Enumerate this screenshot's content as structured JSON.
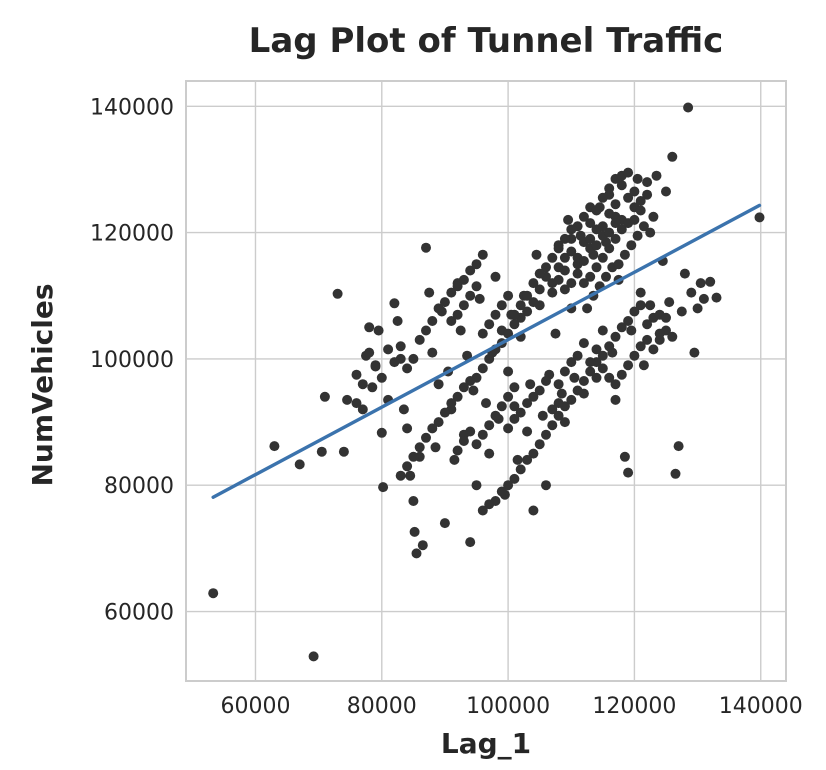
{
  "chart_data": {
    "type": "scatter",
    "title": "Lag Plot of Tunnel Traffic",
    "xlabel": "Lag_1",
    "ylabel": "NumVehicles",
    "xlim": [
      49000,
      144000
    ],
    "ylim": [
      49000,
      144000
    ],
    "xticks": [
      60000,
      80000,
      100000,
      120000,
      140000
    ],
    "yticks": [
      60000,
      80000,
      100000,
      120000,
      140000
    ],
    "grid": true,
    "point_color": "#333333",
    "line_color": "#3b73ad",
    "regression_line": {
      "x": [
        53300,
        139800
      ],
      "y": [
        78100,
        124300
      ]
    },
    "points": [
      [
        53300,
        62900
      ],
      [
        69200,
        52900
      ],
      [
        63000,
        86200
      ],
      [
        67000,
        83300
      ],
      [
        70500,
        85300
      ],
      [
        71000,
        94000
      ],
      [
        73000,
        110300
      ],
      [
        74000,
        85300
      ],
      [
        74500,
        93500
      ],
      [
        76000,
        97500
      ],
      [
        77000,
        92000
      ],
      [
        77500,
        100500
      ],
      [
        78000,
        105000
      ],
      [
        78500,
        95500
      ],
      [
        79000,
        98800
      ],
      [
        79500,
        104500
      ],
      [
        80000,
        88300
      ],
      [
        80200,
        79700
      ],
      [
        81000,
        93500
      ],
      [
        82000,
        108800
      ],
      [
        82500,
        106000
      ],
      [
        83000,
        100000
      ],
      [
        83500,
        92000
      ],
      [
        84000,
        89000
      ],
      [
        84500,
        81500
      ],
      [
        85000,
        77500
      ],
      [
        85200,
        72600
      ],
      [
        85500,
        69200
      ],
      [
        86000,
        84500
      ],
      [
        86500,
        70500
      ],
      [
        87000,
        117600
      ],
      [
        87500,
        110500
      ],
      [
        88000,
        101000
      ],
      [
        88500,
        86000
      ],
      [
        89000,
        96000
      ],
      [
        89500,
        107500
      ],
      [
        90000,
        74000
      ],
      [
        90500,
        98000
      ],
      [
        91000,
        92000
      ],
      [
        91500,
        84000
      ],
      [
        92000,
        112000
      ],
      [
        92500,
        104500
      ],
      [
        93000,
        88000
      ],
      [
        93500,
        100500
      ],
      [
        94000,
        71000
      ],
      [
        94500,
        95000
      ],
      [
        95000,
        80000
      ],
      [
        95500,
        109500
      ],
      [
        96000,
        116500
      ],
      [
        96500,
        93000
      ],
      [
        97000,
        85000
      ],
      [
        97500,
        101000
      ],
      [
        98000,
        113000
      ],
      [
        98500,
        90500
      ],
      [
        99000,
        104500
      ],
      [
        99500,
        78500
      ],
      [
        100000,
        98000
      ],
      [
        100500,
        107000
      ],
      [
        101000,
        92500
      ],
      [
        101500,
        84000
      ],
      [
        102000,
        103500
      ],
      [
        102500,
        110000
      ],
      [
        103000,
        88500
      ],
      [
        103500,
        96000
      ],
      [
        104000,
        76000
      ],
      [
        104500,
        116500
      ],
      [
        105000,
        108500
      ],
      [
        105500,
        91000
      ],
      [
        106000,
        80000
      ],
      [
        106500,
        97500
      ],
      [
        107000,
        112000
      ],
      [
        107500,
        104000
      ],
      [
        108000,
        118000
      ],
      [
        108500,
        94500
      ],
      [
        109000,
        111000
      ],
      [
        109500,
        122000
      ],
      [
        110000,
        108000
      ],
      [
        110500,
        97000
      ],
      [
        111000,
        115000
      ],
      [
        111500,
        119500
      ],
      [
        112000,
        94500
      ],
      [
        112500,
        108000
      ],
      [
        113000,
        121500
      ],
      [
        113500,
        116500
      ],
      [
        114000,
        97000
      ],
      [
        114500,
        124000
      ],
      [
        115000,
        104500
      ],
      [
        115500,
        118500
      ],
      [
        116000,
        126000
      ],
      [
        116500,
        101000
      ],
      [
        117000,
        122500
      ],
      [
        117500,
        112500
      ],
      [
        118000,
        127500
      ],
      [
        118500,
        84500
      ],
      [
        119000,
        82000
      ],
      [
        119500,
        104500
      ],
      [
        120000,
        124000
      ],
      [
        120500,
        128500
      ],
      [
        121000,
        110500
      ],
      [
        121500,
        99000
      ],
      [
        122000,
        126000
      ],
      [
        122500,
        108500
      ],
      [
        123000,
        122500
      ],
      [
        123500,
        129000
      ],
      [
        124000,
        103000
      ],
      [
        124500,
        115500
      ],
      [
        125000,
        126500
      ],
      [
        125500,
        109000
      ],
      [
        126000,
        132000
      ],
      [
        126500,
        81800
      ],
      [
        127000,
        86200
      ],
      [
        127500,
        107500
      ],
      [
        128000,
        113500
      ],
      [
        128500,
        139800
      ],
      [
        129000,
        110500
      ],
      [
        129500,
        101000
      ],
      [
        130000,
        108000
      ],
      [
        130500,
        112000
      ],
      [
        131000,
        109500
      ],
      [
        132000,
        112200
      ],
      [
        133000,
        109700
      ],
      [
        139800,
        122400
      ],
      [
        105000,
        111000
      ],
      [
        106000,
        113000
      ],
      [
        107000,
        110500
      ],
      [
        108000,
        114500
      ],
      [
        109000,
        116000
      ],
      [
        110000,
        117000
      ],
      [
        111000,
        113500
      ],
      [
        112000,
        118500
      ],
      [
        113000,
        119000
      ],
      [
        114000,
        120500
      ],
      [
        115000,
        121000
      ],
      [
        116000,
        123000
      ],
      [
        117000,
        124500
      ],
      [
        118000,
        122000
      ],
      [
        119000,
        125500
      ],
      [
        120000,
        126500
      ],
      [
        121000,
        125000
      ],
      [
        122000,
        128000
      ],
      [
        104000,
        109000
      ],
      [
        103000,
        107500
      ],
      [
        102000,
        106500
      ],
      [
        101000,
        105500
      ],
      [
        100000,
        104000
      ],
      [
        99000,
        102500
      ],
      [
        98000,
        101500
      ],
      [
        97000,
        100000
      ],
      [
        96000,
        98500
      ],
      [
        95000,
        97000
      ],
      [
        94000,
        96500
      ],
      [
        93000,
        95500
      ],
      [
        92000,
        94000
      ],
      [
        91000,
        93000
      ],
      [
        90000,
        91500
      ],
      [
        89000,
        90000
      ],
      [
        88000,
        89000
      ],
      [
        87000,
        87500
      ],
      [
        86000,
        86000
      ],
      [
        85000,
        84500
      ],
      [
        84000,
        83000
      ],
      [
        83000,
        81500
      ],
      [
        106000,
        88000
      ],
      [
        107000,
        89500
      ],
      [
        108000,
        91000
      ],
      [
        109000,
        92500
      ],
      [
        110000,
        93500
      ],
      [
        111000,
        95000
      ],
      [
        112000,
        96500
      ],
      [
        113000,
        98000
      ],
      [
        114000,
        99500
      ],
      [
        115000,
        100500
      ],
      [
        116000,
        102000
      ],
      [
        117000,
        103500
      ],
      [
        118000,
        105000
      ],
      [
        119000,
        106000
      ],
      [
        120000,
        107500
      ],
      [
        121000,
        108500
      ],
      [
        122000,
        105500
      ],
      [
        123000,
        106500
      ],
      [
        124000,
        107000
      ],
      [
        125000,
        104500
      ],
      [
        105000,
        86500
      ],
      [
        104000,
        85000
      ],
      [
        103000,
        84000
      ],
      [
        102000,
        82500
      ],
      [
        101000,
        81000
      ],
      [
        100000,
        80000
      ],
      [
        99000,
        79000
      ],
      [
        98000,
        77500
      ],
      [
        97000,
        77000
      ],
      [
        96000,
        76000
      ],
      [
        86000,
        103000
      ],
      [
        87000,
        104500
      ],
      [
        88000,
        106000
      ],
      [
        89000,
        108000
      ],
      [
        90000,
        109000
      ],
      [
        91000,
        110500
      ],
      [
        92000,
        111500
      ],
      [
        93000,
        112500
      ],
      [
        94000,
        114000
      ],
      [
        95000,
        115000
      ],
      [
        84000,
        98500
      ],
      [
        85000,
        100000
      ],
      [
        83000,
        102000
      ],
      [
        82000,
        99500
      ],
      [
        81000,
        101500
      ],
      [
        80000,
        97000
      ],
      [
        79000,
        99000
      ],
      [
        78000,
        101000
      ],
      [
        77000,
        96000
      ],
      [
        76000,
        93000
      ],
      [
        110000,
        119000
      ],
      [
        111000,
        121000
      ],
      [
        112000,
        122500
      ],
      [
        113000,
        124000
      ],
      [
        114000,
        123500
      ],
      [
        115000,
        125500
      ],
      [
        116000,
        127000
      ],
      [
        117000,
        128500
      ],
      [
        118000,
        129000
      ],
      [
        119000,
        129500
      ],
      [
        108000,
        112500
      ],
      [
        109000,
        114000
      ],
      [
        110000,
        112000
      ],
      [
        111000,
        116000
      ],
      [
        112000,
        115500
      ],
      [
        113000,
        117500
      ],
      [
        114000,
        118000
      ],
      [
        115000,
        119500
      ],
      [
        116000,
        120000
      ],
      [
        117000,
        121500
      ],
      [
        106000,
        114500
      ],
      [
        107000,
        116000
      ],
      [
        108000,
        117500
      ],
      [
        109000,
        119000
      ],
      [
        110000,
        120500
      ],
      [
        104000,
        112000
      ],
      [
        105000,
        113500
      ],
      [
        103000,
        110000
      ],
      [
        102000,
        108500
      ],
      [
        101000,
        107000
      ],
      [
        117000,
        96000
      ],
      [
        118000,
        97500
      ],
      [
        119000,
        99000
      ],
      [
        120000,
        100500
      ],
      [
        121000,
        102000
      ],
      [
        122000,
        103000
      ],
      [
        123000,
        101500
      ],
      [
        124000,
        104000
      ],
      [
        125000,
        106500
      ],
      [
        126000,
        103500
      ],
      [
        108000,
        96000
      ],
      [
        109000,
        98000
      ],
      [
        110000,
        99500
      ],
      [
        111000,
        100500
      ],
      [
        112000,
        102500
      ],
      [
        113000,
        99500
      ],
      [
        114000,
        101500
      ],
      [
        115000,
        98500
      ],
      [
        116000,
        97000
      ],
      [
        117000,
        93500
      ],
      [
        100000,
        89000
      ],
      [
        101000,
        90500
      ],
      [
        102000,
        91500
      ],
      [
        103000,
        93000
      ],
      [
        104000,
        94000
      ],
      [
        105000,
        95000
      ],
      [
        106000,
        96500
      ],
      [
        107000,
        92000
      ],
      [
        108000,
        93000
      ],
      [
        109000,
        90000
      ],
      [
        96000,
        104000
      ],
      [
        97000,
        105500
      ],
      [
        98000,
        107000
      ],
      [
        99000,
        108500
      ],
      [
        100000,
        110000
      ],
      [
        91000,
        106000
      ],
      [
        92000,
        107000
      ],
      [
        93000,
        108500
      ],
      [
        94000,
        110000
      ],
      [
        95000,
        111500
      ],
      [
        97000,
        89500
      ],
      [
        98000,
        91000
      ],
      [
        99000,
        92500
      ],
      [
        100000,
        94000
      ],
      [
        101000,
        95500
      ],
      [
        93000,
        87000
      ],
      [
        94000,
        88500
      ],
      [
        95000,
        86500
      ],
      [
        96000,
        88000
      ],
      [
        92000,
        85500
      ],
      [
        112000,
        112000
      ],
      [
        113000,
        113000
      ],
      [
        114000,
        114500
      ],
      [
        115000,
        116000
      ],
      [
        116000,
        117500
      ],
      [
        117000,
        119000
      ],
      [
        118000,
        120500
      ],
      [
        119000,
        121500
      ],
      [
        120000,
        122000
      ],
      [
        121000,
        123500
      ],
      [
        113500,
        110000
      ],
      [
        114500,
        111500
      ],
      [
        115500,
        113000
      ],
      [
        116500,
        114500
      ],
      [
        119500,
        118000
      ],
      [
        120500,
        119500
      ],
      [
        121500,
        121000
      ],
      [
        122500,
        120000
      ],
      [
        118500,
        116500
      ],
      [
        117500,
        115000
      ]
    ]
  }
}
